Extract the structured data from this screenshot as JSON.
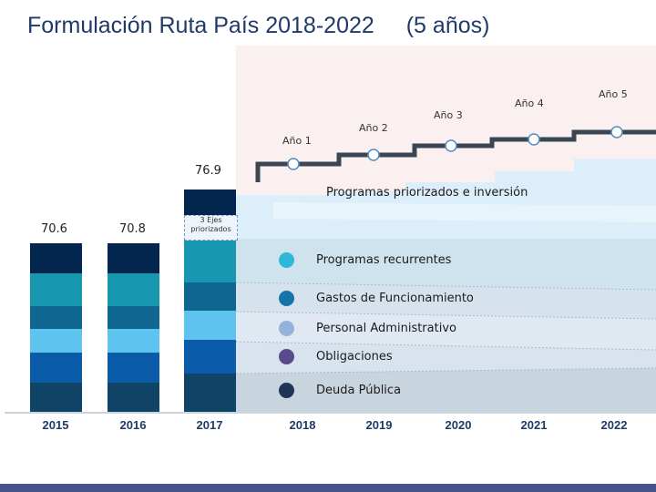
{
  "title": {
    "main": "Formulación Ruta País 2018-2022",
    "period": "(5 años)"
  },
  "colors": {
    "deuda": "#0f4466",
    "obligaciones": "#0b5ca8",
    "personal": "#5ec3ee",
    "gastos": "#0f6690",
    "recurrentes": "#1798b0",
    "programas": "#03264f"
  },
  "bars": [
    {
      "year": "2015",
      "value_label": "70.6"
    },
    {
      "year": "2016",
      "value_label": "70.8"
    },
    {
      "year": "2017",
      "value_label": "76.9"
    }
  ],
  "years": [
    "2015",
    "2016",
    "2017",
    "2018",
    "2019",
    "2020",
    "2021",
    "2022"
  ],
  "steps": [
    "Año 1",
    "Año 2",
    "Año 3",
    "Año 4",
    "Año 5"
  ],
  "ejes_label": "3 Ejes priorizados",
  "programas_label": "Programas priorizados e inversión",
  "legend": [
    {
      "label": "Programas recurrentes",
      "color": "#2eb7d6"
    },
    {
      "label": "Gastos de Funcionamiento",
      "color": "#1476a8"
    },
    {
      "label": "Personal Administrativo",
      "color": "#93b3dc"
    },
    {
      "label": "Obligaciones",
      "color": "#5b4a8a"
    },
    {
      "label": "Deuda Pública",
      "color": "#1f3558"
    }
  ]
}
